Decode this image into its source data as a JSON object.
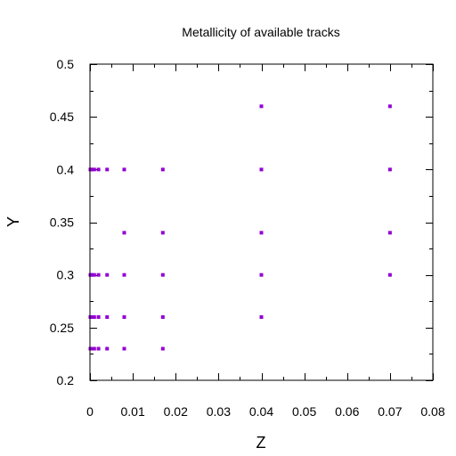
{
  "chart_data": {
    "type": "scatter",
    "title": "Metallicity of available tracks",
    "xlabel": "Z",
    "ylabel": "Y",
    "xlim": [
      0,
      0.08
    ],
    "ylim": [
      0.2,
      0.5
    ],
    "x_major_ticks": [
      0,
      0.01,
      0.02,
      0.03,
      0.04,
      0.05,
      0.06,
      0.07,
      0.08
    ],
    "x_tick_labels": [
      "0",
      "0.01",
      "0.02",
      "0.03",
      "0.04",
      "0.05",
      "0.06",
      "0.07",
      "0.08"
    ],
    "x_minor_ticks": [
      0.005,
      0.015,
      0.025,
      0.035,
      0.045,
      0.055,
      0.065,
      0.075
    ],
    "y_major_ticks": [
      0.2,
      0.25,
      0.3,
      0.35,
      0.4,
      0.45,
      0.5
    ],
    "y_tick_labels": [
      "0.2",
      "0.25",
      "0.3",
      "0.35",
      "0.4",
      "0.45",
      "0.5"
    ],
    "y_minor_ticks": [
      0.225,
      0.275,
      0.325,
      0.375,
      0.425,
      0.475
    ],
    "grid": false,
    "marker_color": "#9400d3",
    "points": [
      {
        "x": 0.0001,
        "y": 0.23
      },
      {
        "x": 0.0004,
        "y": 0.23
      },
      {
        "x": 0.001,
        "y": 0.23
      },
      {
        "x": 0.002,
        "y": 0.23
      },
      {
        "x": 0.004,
        "y": 0.23
      },
      {
        "x": 0.008,
        "y": 0.23
      },
      {
        "x": 0.017,
        "y": 0.23
      },
      {
        "x": 0.0001,
        "y": 0.26
      },
      {
        "x": 0.0004,
        "y": 0.26
      },
      {
        "x": 0.001,
        "y": 0.26
      },
      {
        "x": 0.002,
        "y": 0.26
      },
      {
        "x": 0.004,
        "y": 0.26
      },
      {
        "x": 0.008,
        "y": 0.26
      },
      {
        "x": 0.017,
        "y": 0.26
      },
      {
        "x": 0.04,
        "y": 0.26
      },
      {
        "x": 0.0001,
        "y": 0.3
      },
      {
        "x": 0.0004,
        "y": 0.3
      },
      {
        "x": 0.001,
        "y": 0.3
      },
      {
        "x": 0.002,
        "y": 0.3
      },
      {
        "x": 0.004,
        "y": 0.3
      },
      {
        "x": 0.008,
        "y": 0.3
      },
      {
        "x": 0.017,
        "y": 0.3
      },
      {
        "x": 0.04,
        "y": 0.3
      },
      {
        "x": 0.07,
        "y": 0.3
      },
      {
        "x": 0.008,
        "y": 0.34
      },
      {
        "x": 0.017,
        "y": 0.34
      },
      {
        "x": 0.04,
        "y": 0.34
      },
      {
        "x": 0.07,
        "y": 0.34
      },
      {
        "x": 0.0001,
        "y": 0.4
      },
      {
        "x": 0.0004,
        "y": 0.4
      },
      {
        "x": 0.001,
        "y": 0.4
      },
      {
        "x": 0.002,
        "y": 0.4
      },
      {
        "x": 0.004,
        "y": 0.4
      },
      {
        "x": 0.008,
        "y": 0.4
      },
      {
        "x": 0.017,
        "y": 0.4
      },
      {
        "x": 0.04,
        "y": 0.4
      },
      {
        "x": 0.07,
        "y": 0.4
      },
      {
        "x": 0.04,
        "y": 0.46
      },
      {
        "x": 0.07,
        "y": 0.46
      }
    ]
  }
}
